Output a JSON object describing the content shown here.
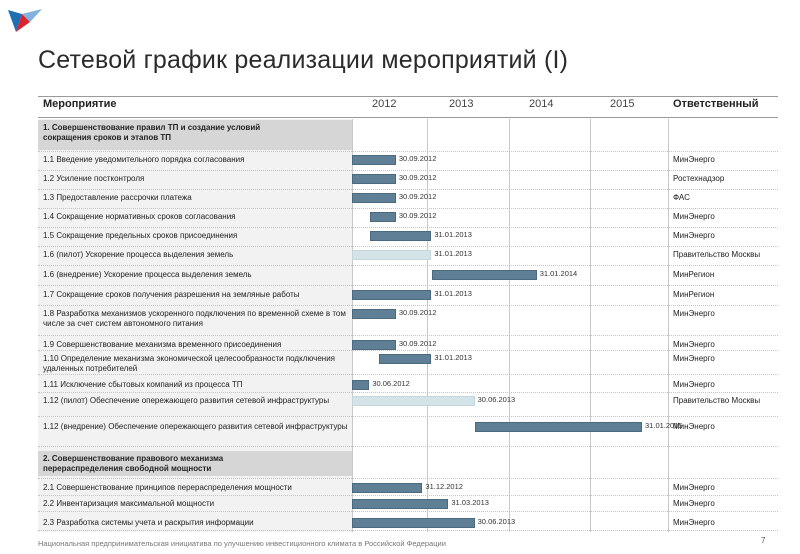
{
  "title": "Сетевой график реализации мероприятий (I)",
  "header": {
    "activity": "Мероприятие",
    "years": [
      "2012",
      "2013",
      "2014",
      "2015"
    ],
    "responsible": "Ответственный"
  },
  "rows": [
    {
      "kind": "section",
      "text": "1. Совершенствование правил ТП и создание условий\n сокращения сроков и этапов ТП"
    },
    {
      "kind": "item",
      "text": "1.1 Введение уведомительного порядка согласования",
      "bar": {
        "start": "2012-05",
        "end": "2012-09-30",
        "style": "actual"
      },
      "date": "30.09.2012",
      "resp": "МинЭнерго"
    },
    {
      "kind": "item",
      "text": "1.2 Усиление постконтроля",
      "bar": {
        "start": "2012-05",
        "end": "2012-09-30",
        "style": "actual"
      },
      "date": "30.09.2012",
      "resp": "Ростехнадзор"
    },
    {
      "kind": "item",
      "text": "1.3  Предоставление рассрочки платежа",
      "bar": {
        "start": "2012-05",
        "end": "2012-09-30",
        "style": "actual"
      },
      "date": "30.09.2012",
      "resp": "ФАС"
    },
    {
      "kind": "item",
      "text": "1.4 Сокращение нормативных сроков согласования",
      "bar": {
        "start": "2012-07",
        "end": "2012-09-30",
        "style": "actual"
      },
      "date": "30.09.2012",
      "resp": "МинЭнерго"
    },
    {
      "kind": "item",
      "text": "1.5 Сокращение предельных сроков присоединения",
      "bar": {
        "start": "2012-07",
        "end": "2013-01-31",
        "style": "actual"
      },
      "date": "31.01.2013",
      "resp": "МинЭнерго"
    },
    {
      "kind": "item",
      "text": "1.6 (пилот) Ускорение процесса выделения земель",
      "bar": {
        "start": "2012-05",
        "end": "2013-01-31",
        "style": "pilot"
      },
      "date": "31.01.2013",
      "resp": "Правительство Москвы"
    },
    {
      "kind": "item",
      "text": "1.6 (внедрение) Ускорение процесса выделения земель",
      "bar": {
        "start": "2013-02",
        "end": "2014-01-31",
        "style": "actual"
      },
      "date": "31.01.2014",
      "resp": "МинРегион"
    },
    {
      "kind": "item",
      "text": "1.7 Сокращение сроков получения разрешения на земляные работы",
      "bar": {
        "start": "2012-05",
        "end": "2013-01-31",
        "style": "actual"
      },
      "date": "31.01.2013",
      "resp": "МинРегион"
    },
    {
      "kind": "item",
      "text": "1.8 Разработка механизмов ускоренного подключения по временной схеме в том числе за счет систем  автономного питания",
      "bar": {
        "start": "2012-05",
        "end": "2012-09-30",
        "style": "actual"
      },
      "date": "30.09.2012",
      "resp": "МинЭнерго"
    },
    {
      "kind": "item",
      "text": "1.9 Совершенствование механизма  временного присоединения",
      "bar": {
        "start": "2012-05",
        "end": "2012-09-30",
        "style": "actual"
      },
      "date": "30.09.2012",
      "resp": "МинЭнерго"
    },
    {
      "kind": "item",
      "text": "1.10 Определение механизма экономической целесообразности подключения удаленных потребителей",
      "bar": {
        "start": "2012-08",
        "end": "2013-01-31",
        "style": "actual"
      },
      "date": "31.01.2013",
      "resp": "МинЭнерго"
    },
    {
      "kind": "item",
      "text": "1.11 Исключение сбытовых компаний из процесса ТП",
      "bar": {
        "start": "2012-05",
        "end": "2012-06-30",
        "style": "actual"
      },
      "date": "30.06.2012",
      "resp": "МинЭнерго"
    },
    {
      "kind": "item",
      "text": "1.12 (пилот) Обеспечение опережающего развития сетевой инфраструктуры",
      "bar": {
        "start": "2012-05",
        "end": "2013-06-30",
        "style": "pilot"
      },
      "date": "30.06.2013",
      "resp": "Правительство Москвы"
    },
    {
      "kind": "item",
      "text": "1.12 (внедрение) Обеспечение опережающего развития сетевой инфраструктуры",
      "bar": {
        "start": "2013-07",
        "end": "2015-01-31",
        "style": "actual"
      },
      "date": "31.01.2015",
      "resp": "МинЭнерго"
    },
    {
      "kind": "section",
      "text": "2. Совершенствование правового механизма\n перераспределения свободной мощности"
    },
    {
      "kind": "item",
      "text": "2.1 Совершенствование принципов перераспределения мощности",
      "bar": {
        "start": "2012-05",
        "end": "2012-12-31",
        "style": "actual"
      },
      "date": "31.12.2012",
      "resp": "МинЭнерго"
    },
    {
      "kind": "item",
      "text": "2.2 Инвентаризация максимальной мощности",
      "bar": {
        "start": "2012-05",
        "end": "2013-03-31",
        "style": "actual"
      },
      "date": "31.03.2013",
      "resp": "МинЭнерго"
    },
    {
      "kind": "item",
      "text": "2.3 Разработка системы учета и раскрытия информации",
      "bar": {
        "start": "2012-05",
        "end": "2013-06-30",
        "style": "actual"
      },
      "date": "30.06.2013",
      "resp": "МинЭнерго"
    }
  ],
  "footer": "Национальная предпринимательская инициатива по улучшению инвестиционного климата в Российской Федерации",
  "page_number": "7",
  "colors": {
    "bar": "#5f7f96",
    "pilot_bar": "#d3e3e8",
    "section_bg": "#d6d6d6",
    "table_bg": "#f2f2f2",
    "logo_red": "#d9232e",
    "logo_blue": "#1f6fb5"
  }
}
